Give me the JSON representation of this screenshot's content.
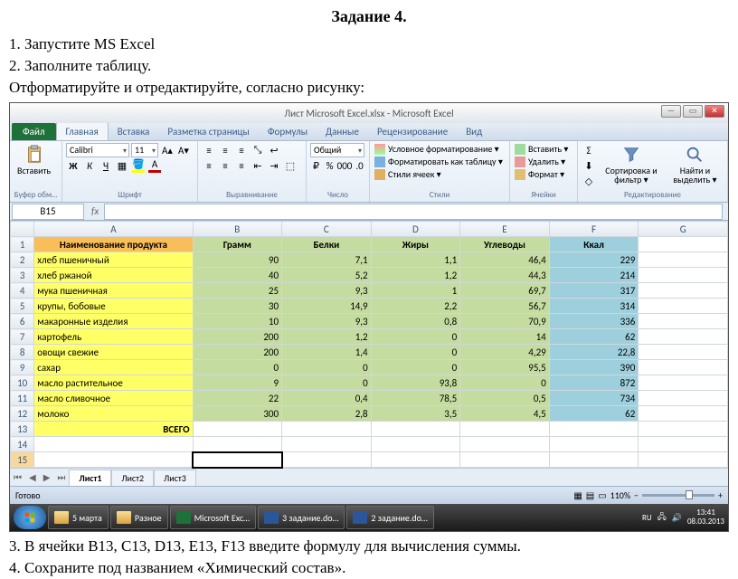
{
  "doc": {
    "title": "Задание 4.",
    "line1": "1. Запустите MS Excel",
    "line2": "2. Заполните таблицу.",
    "line3": "Отформатируйте и отредактируйте, согласно рисунку:",
    "line4": "3. В ячейки B13, C13, D13, E13, F13 введите формулу для вычисления суммы.",
    "line5": "4. Сохраните под названием «Химический состав»."
  },
  "win": {
    "title": "Лист Microsoft Excel.xlsx - Microsoft Excel"
  },
  "tabs": {
    "file": "Файл",
    "home": "Главная",
    "insert": "Вставка",
    "layout": "Разметка страницы",
    "formulas": "Формулы",
    "data": "Данные",
    "review": "Рецензирование",
    "view": "Вид"
  },
  "ribbon": {
    "clipboard": {
      "paste": "Вставить",
      "label": "Буфер обм…"
    },
    "font": {
      "name": "Calibri",
      "size": "11",
      "label": "Шрифт"
    },
    "align": {
      "label": "Выравнивание"
    },
    "number": {
      "format": "Общий",
      "label": "Число"
    },
    "styles": {
      "cond": "Условное форматирование ▾",
      "table": "Форматировать как таблицу ▾",
      "cell": "Стили ячеек ▾",
      "label": "Стили"
    },
    "cells": {
      "insert": "Вставить ▾",
      "delete": "Удалить ▾",
      "format": "Формат ▾",
      "label": "Ячейки"
    },
    "editing": {
      "sort": "Сортировка и фильтр ▾",
      "find": "Найти и выделить ▾",
      "label": "Редактирование"
    }
  },
  "namebox": "B15",
  "cols": [
    "A",
    "B",
    "C",
    "D",
    "E",
    "F",
    "G"
  ],
  "headers": [
    "Наименование продукта",
    "Грамм",
    "Белки",
    "Жиры",
    "Углеводы",
    "Ккал"
  ],
  "rows": [
    {
      "n": "хлеб пшеничный",
      "v": [
        "90",
        "7,1",
        "1,1",
        "46,4",
        "229"
      ]
    },
    {
      "n": "хлеб ржаной",
      "v": [
        "40",
        "5,2",
        "1,2",
        "44,3",
        "214"
      ]
    },
    {
      "n": "мука пшеничная",
      "v": [
        "25",
        "9,3",
        "1",
        "69,7",
        "317"
      ]
    },
    {
      "n": "крупы, бобовые",
      "v": [
        "30",
        "14,9",
        "2,2",
        "56,7",
        "314"
      ]
    },
    {
      "n": "макаронные изделия",
      "v": [
        "10",
        "9,3",
        "0,8",
        "70,9",
        "336"
      ]
    },
    {
      "n": "картофель",
      "v": [
        "200",
        "1,2",
        "0",
        "14",
        "62"
      ]
    },
    {
      "n": "овощи свежие",
      "v": [
        "200",
        "1,4",
        "0",
        "4,29",
        "22,8"
      ]
    },
    {
      "n": "сахар",
      "v": [
        "0",
        "0",
        "0",
        "95,5",
        "390"
      ]
    },
    {
      "n": "масло растительное",
      "v": [
        "9",
        "0",
        "93,8",
        "0",
        "872"
      ]
    },
    {
      "n": "масло сливочное",
      "v": [
        "22",
        "0,4",
        "78,5",
        "0,5",
        "734"
      ]
    },
    {
      "n": "молоко",
      "v": [
        "300",
        "2,8",
        "3,5",
        "4,5",
        "62"
      ]
    }
  ],
  "total_label": "ВСЕГО",
  "sheets": {
    "s1": "Лист1",
    "s2": "Лист2",
    "s3": "Лист3"
  },
  "status": "Готово",
  "zoom": "110%",
  "taskbar": {
    "f1": "5 марта",
    "f2": "Разное",
    "e": "Microsoft Exc…",
    "w1": "3 задание.do…",
    "w2": "2 задание.do…",
    "lang": "RU",
    "time": "13:41",
    "date": "08.03.2013"
  }
}
